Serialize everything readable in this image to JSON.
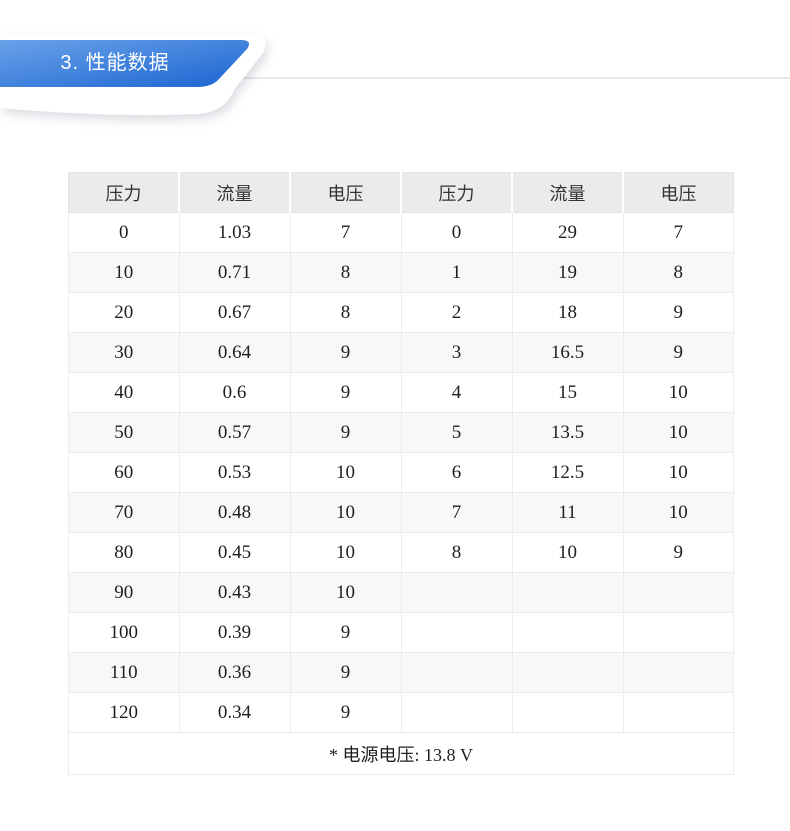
{
  "banner": {
    "title": "3. 性能数据",
    "text_color": "#ffffff",
    "gradient_start": "#6aa2e9",
    "gradient_end": "#1b64d0"
  },
  "divider": {
    "color": "#eaeaea"
  },
  "table": {
    "headers": [
      "压力",
      "流量",
      "电压",
      "压力",
      "流量",
      "电压"
    ],
    "rows": [
      [
        "0",
        "1.03",
        "7",
        "0",
        "29",
        "7"
      ],
      [
        "10",
        "0.71",
        "8",
        "1",
        "19",
        "8"
      ],
      [
        "20",
        "0.67",
        "8",
        "2",
        "18",
        "9"
      ],
      [
        "30",
        "0.64",
        "9",
        "3",
        "16.5",
        "9"
      ],
      [
        "40",
        "0.6",
        "9",
        "4",
        "15",
        "10"
      ],
      [
        "50",
        "0.57",
        "9",
        "5",
        "13.5",
        "10"
      ],
      [
        "60",
        "0.53",
        "10",
        "6",
        "12.5",
        "10"
      ],
      [
        "70",
        "0.48",
        "10",
        "7",
        "11",
        "10"
      ],
      [
        "80",
        "0.45",
        "10",
        "8",
        "10",
        "9"
      ],
      [
        "90",
        "0.43",
        "10",
        "",
        "",
        ""
      ],
      [
        "100",
        "0.39",
        "9",
        "",
        "",
        ""
      ],
      [
        "110",
        "0.36",
        "9",
        "",
        "",
        ""
      ],
      [
        "120",
        "0.34",
        "9",
        "",
        "",
        ""
      ]
    ],
    "footnote": "* 电源电压: 13.8 V",
    "colors": {
      "header_bg": "#ebebeb",
      "header_text": "#333333",
      "body_text": "#1f1f1f",
      "stripe": "#f8f8f8",
      "cell_border": "#ececec",
      "header_border": "#e3e3e3"
    }
  }
}
